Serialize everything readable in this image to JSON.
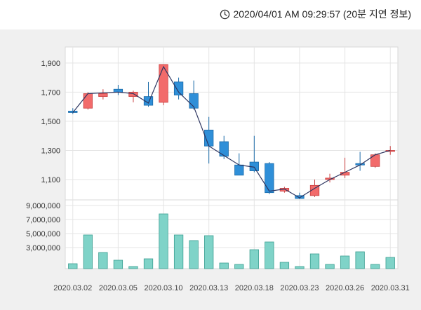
{
  "header": {
    "timestamp": "2020/04/01 AM 09:29:57 (20분 지연 정보)",
    "clock_icon": "clock-icon"
  },
  "colors": {
    "up": "#f26b6b",
    "up_border": "#c94040",
    "down": "#2f8fd8",
    "down_border": "#1a6aa8",
    "volume": "#7fd3c8",
    "volume_border": "#3c9f92",
    "ma_line": "#2d3560",
    "panel_bg": "#ffffff",
    "grid": "#e4e4e4"
  },
  "chart_data": {
    "type": "candlestick",
    "price_axis": {
      "ticks": [
        1100,
        1300,
        1500,
        1700,
        1900
      ],
      "labels": [
        "1,100",
        "1,300",
        "1,500",
        "1,700",
        "1,900"
      ],
      "ylim": [
        970,
        2010
      ]
    },
    "volume_axis": {
      "ticks": [
        3000000,
        5000000,
        7000000,
        9000000
      ],
      "labels": [
        "3,000,000",
        "5,000,000",
        "7,000,000",
        "9,000,000"
      ],
      "ylim": [
        0,
        9600000
      ]
    },
    "x_labels": [
      {
        "index": 0,
        "text": "2020.03.02"
      },
      {
        "index": 3,
        "text": "2020.03.05"
      },
      {
        "index": 6,
        "text": "2020.03.10"
      },
      {
        "index": 9,
        "text": "2020.03.13"
      },
      {
        "index": 12,
        "text": "2020.03.18"
      },
      {
        "index": 15,
        "text": "2020.03.23"
      },
      {
        "index": 18,
        "text": "2020.03.26"
      },
      {
        "index": 21,
        "text": "2020.03.31"
      }
    ],
    "candles": [
      {
        "open": 1570,
        "high": 1590,
        "low": 1550,
        "close": 1560,
        "volume": 700000
      },
      {
        "open": 1590,
        "high": 1700,
        "low": 1580,
        "close": 1690,
        "volume": 4800000
      },
      {
        "open": 1670,
        "high": 1720,
        "low": 1650,
        "close": 1690,
        "volume": 2300000
      },
      {
        "open": 1720,
        "high": 1750,
        "low": 1680,
        "close": 1700,
        "volume": 1200000
      },
      {
        "open": 1670,
        "high": 1710,
        "low": 1630,
        "close": 1700,
        "volume": 300000
      },
      {
        "open": 1670,
        "high": 1770,
        "low": 1600,
        "close": 1610,
        "volume": 1400000
      },
      {
        "open": 1630,
        "high": 1890,
        "low": 1610,
        "close": 1890,
        "volume": 7800000
      },
      {
        "open": 1770,
        "high": 1800,
        "low": 1650,
        "close": 1680,
        "volume": 4800000
      },
      {
        "open": 1690,
        "high": 1780,
        "low": 1580,
        "close": 1590,
        "volume": 4000000
      },
      {
        "open": 1440,
        "high": 1530,
        "low": 1210,
        "close": 1330,
        "volume": 4700000
      },
      {
        "open": 1360,
        "high": 1400,
        "low": 1240,
        "close": 1260,
        "volume": 800000
      },
      {
        "open": 1200,
        "high": 1280,
        "low": 1130,
        "close": 1130,
        "volume": 600000
      },
      {
        "open": 1220,
        "high": 1400,
        "low": 1150,
        "close": 1160,
        "volume": 2700000
      },
      {
        "open": 1210,
        "high": 1220,
        "low": 1000,
        "close": 1010,
        "volume": 3800000
      },
      {
        "open": 1020,
        "high": 1050,
        "low": 1010,
        "close": 1040,
        "volume": 900000
      },
      {
        "open": 990,
        "high": 1010,
        "low": 965,
        "close": 970,
        "volume": 300000
      },
      {
        "open": 990,
        "high": 1100,
        "low": 980,
        "close": 1060,
        "volume": 2100000
      },
      {
        "open": 1100,
        "high": 1140,
        "low": 1080,
        "close": 1110,
        "volume": 600000
      },
      {
        "open": 1130,
        "high": 1250,
        "low": 1110,
        "close": 1150,
        "volume": 1800000
      },
      {
        "open": 1210,
        "high": 1290,
        "low": 1160,
        "close": 1200,
        "volume": 2400000
      },
      {
        "open": 1190,
        "high": 1280,
        "low": 1180,
        "close": 1270,
        "volume": 600000
      },
      {
        "open": 1300,
        "high": 1330,
        "low": 1270,
        "close": 1300,
        "volume": 1600000
      }
    ],
    "ma_line": [
      1560,
      1690,
      1695,
      1700,
      1690,
      1625,
      1875,
      1700,
      1600,
      1330,
      1265,
      1200,
      1185,
      1020,
      1035,
      975,
      1040,
      1100,
      1150,
      1200,
      1270,
      1300
    ]
  }
}
